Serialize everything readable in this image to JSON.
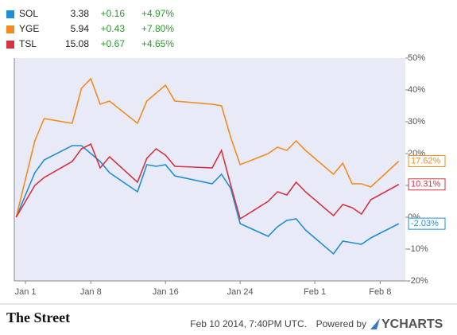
{
  "chart_data": {
    "type": "line",
    "x": [
      -1,
      1,
      2,
      5,
      6,
      7,
      8,
      9,
      12,
      13,
      14,
      15,
      16,
      20,
      21,
      22,
      23,
      26,
      27,
      28,
      29,
      30,
      33,
      34,
      35,
      36,
      37,
      40
    ],
    "xlim": [
      -1.2,
      40.7
    ],
    "xticks": [
      {
        "value": 0,
        "label": "Jan 1"
      },
      {
        "value": 7,
        "label": "Jan 8"
      },
      {
        "value": 15,
        "label": "Jan 16"
      },
      {
        "value": 23,
        "label": "Jan 24"
      },
      {
        "value": 31,
        "label": "Feb 1"
      },
      {
        "value": 38,
        "label": "Feb 8"
      }
    ],
    "ylim": [
      -20,
      50
    ],
    "yticks": [
      {
        "value": -20,
        "label": "-20%"
      },
      {
        "value": -10,
        "label": "-10%"
      },
      {
        "value": 0,
        "label": "0%"
      },
      {
        "value": 10,
        "label": "10%"
      },
      {
        "value": 20,
        "label": "20%"
      },
      {
        "value": 30,
        "label": "30%"
      },
      {
        "value": 40,
        "label": "40%"
      },
      {
        "value": 50,
        "label": "50%"
      }
    ],
    "series": [
      {
        "name": "SOL",
        "color": "#1f8ed8",
        "price": 3.38,
        "change": {
          "value": 0.16,
          "label": "+0.16"
        },
        "change_pct": {
          "value": 4.97,
          "label": "+4.97%"
        },
        "values": [
          0,
          14,
          18,
          22.5,
          22.5,
          20,
          17.5,
          14,
          8,
          16.5,
          16,
          16.5,
          13,
          10.5,
          13.5,
          9,
          -2,
          -6,
          -3,
          -1,
          -0.5,
          -4,
          -11.5,
          -7.5,
          -8,
          -8.5,
          -6.5,
          -2.03
        ],
        "value_labels": [
          null,
          null,
          null,
          null,
          null,
          null,
          null,
          null,
          null,
          null,
          null,
          null,
          null,
          null,
          null,
          null,
          null,
          null,
          null,
          null,
          null,
          null,
          null,
          null,
          null,
          null,
          null,
          "-2.03%"
        ]
      },
      {
        "name": "YGE",
        "color": "#f38b1e",
        "price": 5.94,
        "change": {
          "value": 0.43,
          "label": "+0.43"
        },
        "change_pct": {
          "value": 7.8,
          "label": "+7.80%"
        },
        "values": [
          0,
          24,
          31,
          29.5,
          40.5,
          43.5,
          35.5,
          36.5,
          29.5,
          36.5,
          39,
          41.5,
          36.5,
          35.5,
          35,
          25,
          16.5,
          20,
          22,
          21,
          24,
          21,
          13.5,
          17,
          10.5,
          10.5,
          9.5,
          17.62
        ],
        "value_labels": [
          null,
          null,
          null,
          null,
          null,
          null,
          null,
          null,
          null,
          null,
          null,
          null,
          null,
          null,
          null,
          null,
          null,
          null,
          null,
          null,
          null,
          null,
          null,
          null,
          null,
          null,
          null,
          "17.62%"
        ]
      },
      {
        "name": "TSL",
        "color": "#d63340",
        "price": 15.08,
        "change": {
          "value": 0.67,
          "label": "+0.67"
        },
        "change_pct": {
          "value": 4.65,
          "label": "+4.65%"
        },
        "values": [
          0,
          10,
          12.5,
          17.5,
          21.5,
          23,
          15.5,
          19,
          11,
          18.5,
          21.5,
          19.5,
          16,
          15.5,
          21,
          10,
          -0.5,
          5,
          8,
          7,
          11,
          8,
          0.5,
          4,
          3,
          1,
          5.5,
          10.31
        ],
        "value_labels": [
          null,
          null,
          null,
          null,
          null,
          null,
          null,
          null,
          null,
          null,
          null,
          null,
          null,
          null,
          null,
          null,
          null,
          null,
          null,
          null,
          null,
          null,
          null,
          null,
          null,
          null,
          null,
          "10.31%"
        ]
      }
    ]
  },
  "footer": {
    "source": "The Street",
    "timestamp": "Feb 10 2014, 7:40PM UTC.",
    "powered_by": "Powered by",
    "brand": "YCHARTS"
  }
}
